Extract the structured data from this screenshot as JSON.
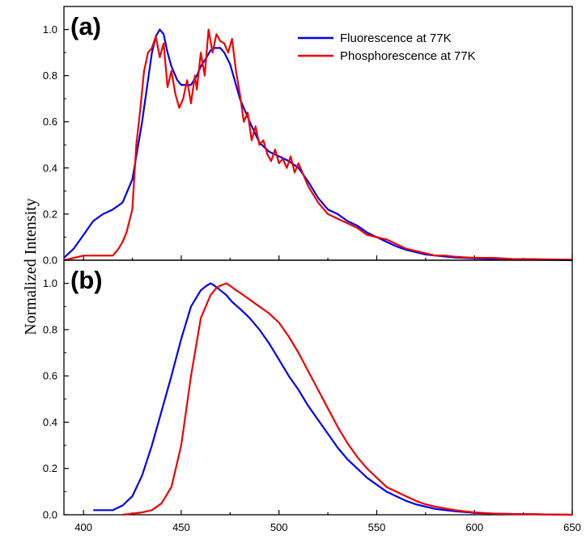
{
  "figure": {
    "ylabel": "Normalized Intensity"
  },
  "chart_data": [
    {
      "type": "line",
      "panel_label": "(a)",
      "xlim": [
        390,
        650
      ],
      "ylim": [
        0,
        1.1
      ],
      "y_ticks": [
        "0.0",
        "0.2",
        "0.4",
        "0.6",
        "0.8",
        "1.0"
      ],
      "x_tick_labels_shown": false,
      "legend": {
        "placement": "top-right"
      },
      "series": [
        {
          "name": "Fluorescence at 77K",
          "color": "#0000ee",
          "x": [
            390,
            395,
            400,
            405,
            410,
            415,
            420,
            425,
            430,
            432,
            435,
            437,
            439,
            441,
            443,
            445,
            448,
            450,
            452,
            455,
            458,
            460,
            463,
            465,
            467,
            470,
            472,
            475,
            478,
            480,
            485,
            490,
            495,
            500,
            505,
            510,
            515,
            520,
            525,
            530,
            535,
            540,
            545,
            550,
            555,
            560,
            565,
            570,
            575,
            580,
            590,
            600,
            610,
            620,
            630,
            640,
            650
          ],
          "y": [
            0.01,
            0.05,
            0.11,
            0.17,
            0.2,
            0.22,
            0.25,
            0.35,
            0.6,
            0.72,
            0.9,
            0.97,
            1.0,
            0.98,
            0.9,
            0.84,
            0.78,
            0.76,
            0.76,
            0.76,
            0.8,
            0.84,
            0.88,
            0.91,
            0.92,
            0.92,
            0.9,
            0.85,
            0.76,
            0.7,
            0.6,
            0.51,
            0.47,
            0.45,
            0.43,
            0.4,
            0.34,
            0.27,
            0.22,
            0.2,
            0.17,
            0.15,
            0.12,
            0.1,
            0.08,
            0.06,
            0.045,
            0.035,
            0.025,
            0.02,
            0.012,
            0.008,
            0.005,
            0.003,
            0.002,
            0.001,
            0.0
          ]
        },
        {
          "name": "Phosphorescence at 77K",
          "color": "#ee0000",
          "x": [
            390,
            400,
            410,
            415,
            418,
            420,
            422,
            425,
            427,
            429,
            431,
            433,
            435,
            437,
            439,
            441,
            443,
            445,
            447,
            449,
            451,
            453,
            455,
            457,
            458,
            460,
            462,
            464,
            466,
            468,
            470,
            472,
            474,
            476,
            478,
            480,
            482,
            484,
            486,
            488,
            490,
            492,
            494,
            496,
            498,
            500,
            502,
            504,
            506,
            508,
            510,
            515,
            520,
            525,
            530,
            535,
            540,
            545,
            550,
            555,
            560,
            565,
            570,
            575,
            580,
            585,
            590,
            600,
            610,
            620,
            630,
            640,
            650
          ],
          "y": [
            0.0,
            0.02,
            0.02,
            0.02,
            0.05,
            0.08,
            0.12,
            0.22,
            0.5,
            0.65,
            0.82,
            0.9,
            0.92,
            0.97,
            0.88,
            0.94,
            0.75,
            0.82,
            0.72,
            0.66,
            0.7,
            0.78,
            0.68,
            0.8,
            0.74,
            0.9,
            0.8,
            1.0,
            0.9,
            0.98,
            0.95,
            0.94,
            0.9,
            0.96,
            0.82,
            0.72,
            0.6,
            0.64,
            0.52,
            0.58,
            0.5,
            0.52,
            0.46,
            0.43,
            0.48,
            0.42,
            0.44,
            0.4,
            0.45,
            0.38,
            0.42,
            0.32,
            0.25,
            0.2,
            0.18,
            0.16,
            0.14,
            0.11,
            0.1,
            0.09,
            0.07,
            0.05,
            0.04,
            0.03,
            0.02,
            0.02,
            0.015,
            0.01,
            0.01,
            0.005,
            0.005,
            0.003,
            0.002
          ]
        }
      ]
    },
    {
      "type": "line",
      "panel_label": "(b)",
      "xlim": [
        390,
        650
      ],
      "ylim": [
        0,
        1.1
      ],
      "y_ticks": [
        "0.0",
        "0.2",
        "0.4",
        "0.6",
        "0.8",
        "1.0"
      ],
      "x_ticks": [
        "400",
        "450",
        "500",
        "550",
        "600",
        "650"
      ],
      "series": [
        {
          "name": "Fluorescence at 77K",
          "color": "#0000ee",
          "x": [
            405,
            410,
            415,
            420,
            425,
            430,
            435,
            440,
            445,
            450,
            455,
            460,
            463,
            465,
            467,
            470,
            473,
            476,
            480,
            485,
            490,
            495,
            500,
            505,
            510,
            515,
            520,
            525,
            530,
            535,
            540,
            545,
            550,
            555,
            560,
            565,
            570,
            575,
            580,
            590,
            600,
            610,
            620,
            630,
            640,
            650
          ],
          "y": [
            0.02,
            0.02,
            0.02,
            0.04,
            0.08,
            0.17,
            0.3,
            0.45,
            0.6,
            0.76,
            0.9,
            0.97,
            0.99,
            1.0,
            0.99,
            0.97,
            0.95,
            0.92,
            0.89,
            0.85,
            0.8,
            0.74,
            0.67,
            0.6,
            0.54,
            0.47,
            0.41,
            0.35,
            0.29,
            0.24,
            0.2,
            0.16,
            0.13,
            0.1,
            0.08,
            0.06,
            0.045,
            0.035,
            0.025,
            0.015,
            0.008,
            0.005,
            0.003,
            0.002,
            0.001,
            0.0
          ]
        },
        {
          "name": "Phosphorescence at 77K",
          "color": "#ee0000",
          "x": [
            420,
            425,
            430,
            435,
            440,
            445,
            450,
            455,
            460,
            465,
            468,
            470,
            473,
            475,
            478,
            480,
            485,
            490,
            495,
            500,
            505,
            510,
            515,
            520,
            525,
            530,
            535,
            540,
            545,
            550,
            555,
            560,
            565,
            570,
            575,
            580,
            590,
            600,
            610,
            620,
            630,
            640,
            650
          ],
          "y": [
            0.0,
            0.005,
            0.01,
            0.02,
            0.05,
            0.12,
            0.3,
            0.6,
            0.85,
            0.95,
            0.98,
            0.99,
            1.0,
            0.99,
            0.97,
            0.96,
            0.93,
            0.9,
            0.87,
            0.83,
            0.77,
            0.7,
            0.62,
            0.54,
            0.46,
            0.38,
            0.31,
            0.25,
            0.2,
            0.16,
            0.12,
            0.1,
            0.08,
            0.06,
            0.045,
            0.035,
            0.02,
            0.01,
            0.005,
            0.003,
            0.002,
            0.001,
            0.0
          ]
        }
      ]
    }
  ]
}
